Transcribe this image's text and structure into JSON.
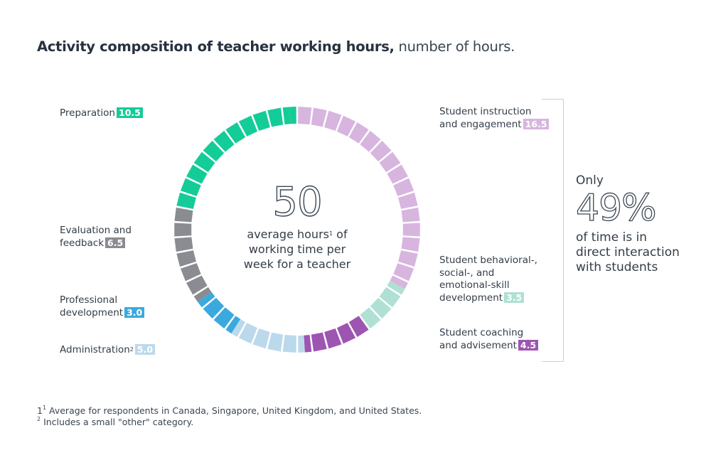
{
  "title": {
    "bold": "Activity composition of teacher working hours,",
    "light": "number of hours."
  },
  "center": {
    "value": "50",
    "line1": "average hours",
    "line1_sup": "1",
    "line1_tail": " of",
    "line2": "working time per",
    "line3": "week for a teacher"
  },
  "callout": {
    "only": "Only",
    "pct": "49%",
    "line1": "of time is in",
    "line2": "direct interaction",
    "line3": "with students"
  },
  "labels": {
    "preparation": {
      "text": "Preparation",
      "value": "10.5"
    },
    "evaluation": {
      "line1": "Evaluation and",
      "line2": "feedback",
      "value": "6.5"
    },
    "professional": {
      "line1": "Professional",
      "line2": "development",
      "value": "3.0"
    },
    "administration": {
      "text": "Administration",
      "sup": "2",
      "value": "5.0"
    },
    "instruction": {
      "line1": "Student instruction",
      "line2": "and engagement",
      "value": "16.5"
    },
    "behavioral": {
      "line1": "Student behavioral-,",
      "line2": "social-, and",
      "line3": "emotional-skill",
      "line4": "development",
      "value": "3.5"
    },
    "coaching": {
      "line1": "Student coaching",
      "line2": "and advisement",
      "value": "4.5"
    }
  },
  "footnotes": {
    "f1_num": "1",
    "f1_sup": "1",
    "f1_text": " Average for respondents in Canada, Singapore, United Kingdom, and United States.",
    "f2_sup": "2",
    "f2_text": " Includes a small \"other\" category."
  },
  "colors": {
    "instruction": "#d7b5df",
    "behavioral": "#afe0d3",
    "coaching": "#9e55b2",
    "administration": "#bcd9ec",
    "professional": "#3aa9de",
    "evaluation": "#8a8c91",
    "preparation": "#14cc98"
  },
  "chart_data": {
    "type": "pie",
    "variant": "segmented-donut",
    "title": "Activity composition of teacher working hours, number of hours.",
    "total": 50,
    "total_label": "average hours of working time per week for a teacher",
    "unit_per_segment": 1,
    "order": "clockwise from top",
    "categories": [
      "Student instruction and engagement",
      "Student behavioral-, social-, and emotional-skill development",
      "Student coaching and advisement",
      "Administration",
      "Professional development",
      "Evaluation and feedback",
      "Preparation"
    ],
    "values": [
      16.5,
      3.5,
      4.5,
      5.0,
      3.0,
      6.5,
      10.5
    ],
    "colors": [
      "#d7b5df",
      "#afe0d3",
      "#9e55b2",
      "#bcd9ec",
      "#3aa9de",
      "#8a8c91",
      "#14cc98"
    ],
    "annotation": "Only 49% of time is in direct interaction with students",
    "bracketed_categories": [
      "Student instruction and engagement",
      "Student behavioral-, social-, and emotional-skill development",
      "Student coaching and advisement"
    ],
    "footnotes": [
      "Average for respondents in Canada, Singapore, United Kingdom, and United States.",
      "Includes a small \"other\" category."
    ]
  }
}
